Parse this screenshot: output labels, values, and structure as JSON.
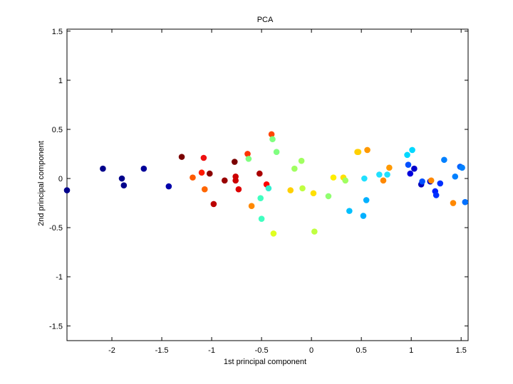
{
  "chart_data": {
    "type": "scatter",
    "title": "PCA",
    "xlabel": "1st principal component",
    "ylabel": "2nd principal component",
    "xlim": [
      -2.45,
      1.57
    ],
    "ylim": [
      -1.65,
      1.52
    ],
    "xticks": [
      -2,
      -1.5,
      -1,
      -0.5,
      0,
      0.5,
      1,
      1.5
    ],
    "xtick_labels": [
      "-2",
      "-1.5",
      "-1",
      "-0.5",
      "0",
      "0.5",
      "1",
      "1.5"
    ],
    "yticks": [
      -1.5,
      -1,
      -0.5,
      0,
      0.5,
      1,
      1.5
    ],
    "ytick_labels": [
      "-1.5",
      "-1",
      "-0.5",
      "0",
      "0.5",
      "1",
      "1.5"
    ],
    "grid": false,
    "colormap": "jet",
    "points": [
      {
        "x": -2.45,
        "y": -0.12,
        "color": "#00008b"
      },
      {
        "x": -2.09,
        "y": 0.1,
        "color": "#00008b"
      },
      {
        "x": -1.9,
        "y": 0.0,
        "color": "#00008b"
      },
      {
        "x": -1.88,
        "y": -0.07,
        "color": "#00008b"
      },
      {
        "x": -1.68,
        "y": 0.1,
        "color": "#000099"
      },
      {
        "x": -1.43,
        "y": -0.08,
        "color": "#0000aa"
      },
      {
        "x": -1.3,
        "y": 0.22,
        "color": "#7a0000"
      },
      {
        "x": -1.19,
        "y": 0.01,
        "color": "#ff5a00"
      },
      {
        "x": -1.1,
        "y": 0.06,
        "color": "#ff1a00"
      },
      {
        "x": -1.08,
        "y": 0.21,
        "color": "#ee1111"
      },
      {
        "x": -1.07,
        "y": -0.11,
        "color": "#ff6600"
      },
      {
        "x": -1.02,
        "y": 0.05,
        "color": "#8b0000"
      },
      {
        "x": -0.98,
        "y": -0.26,
        "color": "#bb0000"
      },
      {
        "x": -0.87,
        "y": -0.02,
        "color": "#990000"
      },
      {
        "x": -0.77,
        "y": 0.17,
        "color": "#7a0000"
      },
      {
        "x": -0.76,
        "y": 0.02,
        "color": "#cc0000"
      },
      {
        "x": -0.76,
        "y": -0.02,
        "color": "#cc0000"
      },
      {
        "x": -0.73,
        "y": -0.11,
        "color": "#dd0000"
      },
      {
        "x": -0.64,
        "y": 0.25,
        "color": "#ff3300"
      },
      {
        "x": -0.63,
        "y": 0.2,
        "color": "#80ff80"
      },
      {
        "x": -0.6,
        "y": -0.28,
        "color": "#ff8800"
      },
      {
        "x": -0.52,
        "y": 0.05,
        "color": "#aa0000"
      },
      {
        "x": -0.51,
        "y": -0.2,
        "color": "#40ffc0"
      },
      {
        "x": -0.5,
        "y": -0.41,
        "color": "#40ffc0"
      },
      {
        "x": -0.45,
        "y": -0.06,
        "color": "#ff0000"
      },
      {
        "x": -0.43,
        "y": -0.1,
        "color": "#30f0d0"
      },
      {
        "x": -0.4,
        "y": 0.45,
        "color": "#ff4400"
      },
      {
        "x": -0.39,
        "y": 0.4,
        "color": "#80ff80"
      },
      {
        "x": -0.38,
        "y": -0.56,
        "color": "#e0ff20"
      },
      {
        "x": -0.35,
        "y": 0.27,
        "color": "#80ff80"
      },
      {
        "x": -0.21,
        "y": -0.12,
        "color": "#ffd000"
      },
      {
        "x": -0.17,
        "y": 0.1,
        "color": "#a0ff60"
      },
      {
        "x": -0.1,
        "y": 0.18,
        "color": "#a0ff60"
      },
      {
        "x": -0.09,
        "y": -0.1,
        "color": "#c0ff40"
      },
      {
        "x": 0.02,
        "y": -0.15,
        "color": "#ffe000"
      },
      {
        "x": 0.03,
        "y": -0.54,
        "color": "#c0ff40"
      },
      {
        "x": 0.17,
        "y": -0.18,
        "color": "#90ff70"
      },
      {
        "x": 0.22,
        "y": 0.01,
        "color": "#ffee00"
      },
      {
        "x": 0.32,
        "y": 0.01,
        "color": "#ffe000"
      },
      {
        "x": 0.34,
        "y": -0.02,
        "color": "#a0ff60"
      },
      {
        "x": 0.38,
        "y": -0.33,
        "color": "#00c0ff"
      },
      {
        "x": 0.46,
        "y": 0.27,
        "color": "#ffd000"
      },
      {
        "x": 0.47,
        "y": 0.27,
        "color": "#ffd000"
      },
      {
        "x": 0.52,
        "y": -0.38,
        "color": "#00b0ff"
      },
      {
        "x": 0.53,
        "y": 0.0,
        "color": "#20e0ff"
      },
      {
        "x": 0.55,
        "y": -0.22,
        "color": "#00b0ff"
      },
      {
        "x": 0.56,
        "y": 0.29,
        "color": "#ff9900"
      },
      {
        "x": 0.68,
        "y": 0.04,
        "color": "#20e0ff"
      },
      {
        "x": 0.72,
        "y": -0.02,
        "color": "#ff8800"
      },
      {
        "x": 0.76,
        "y": 0.04,
        "color": "#20e0ff"
      },
      {
        "x": 0.78,
        "y": 0.11,
        "color": "#ff9900"
      },
      {
        "x": 0.96,
        "y": 0.24,
        "color": "#00d8ff"
      },
      {
        "x": 0.97,
        "y": 0.14,
        "color": "#0050ff"
      },
      {
        "x": 0.99,
        "y": 0.05,
        "color": "#0000dd"
      },
      {
        "x": 1.01,
        "y": 0.29,
        "color": "#00d8ff"
      },
      {
        "x": 1.03,
        "y": 0.1,
        "color": "#0000cc"
      },
      {
        "x": 1.1,
        "y": -0.06,
        "color": "#0000bb"
      },
      {
        "x": 1.11,
        "y": -0.03,
        "color": "#0050ff"
      },
      {
        "x": 1.19,
        "y": -0.03,
        "color": "#0000cc"
      },
      {
        "x": 1.2,
        "y": -0.02,
        "color": "#ff8800"
      },
      {
        "x": 1.24,
        "y": -0.13,
        "color": "#0020ff"
      },
      {
        "x": 1.25,
        "y": -0.17,
        "color": "#0030ff"
      },
      {
        "x": 1.29,
        "y": -0.05,
        "color": "#0030ff"
      },
      {
        "x": 1.33,
        "y": 0.19,
        "color": "#0080ff"
      },
      {
        "x": 1.42,
        "y": -0.25,
        "color": "#ff8800"
      },
      {
        "x": 1.44,
        "y": 0.02,
        "color": "#0080ff"
      },
      {
        "x": 1.49,
        "y": 0.12,
        "color": "#0060ff"
      },
      {
        "x": 1.51,
        "y": 0.11,
        "color": "#0080ff"
      },
      {
        "x": 1.54,
        "y": -0.24,
        "color": "#0070ff"
      }
    ]
  }
}
